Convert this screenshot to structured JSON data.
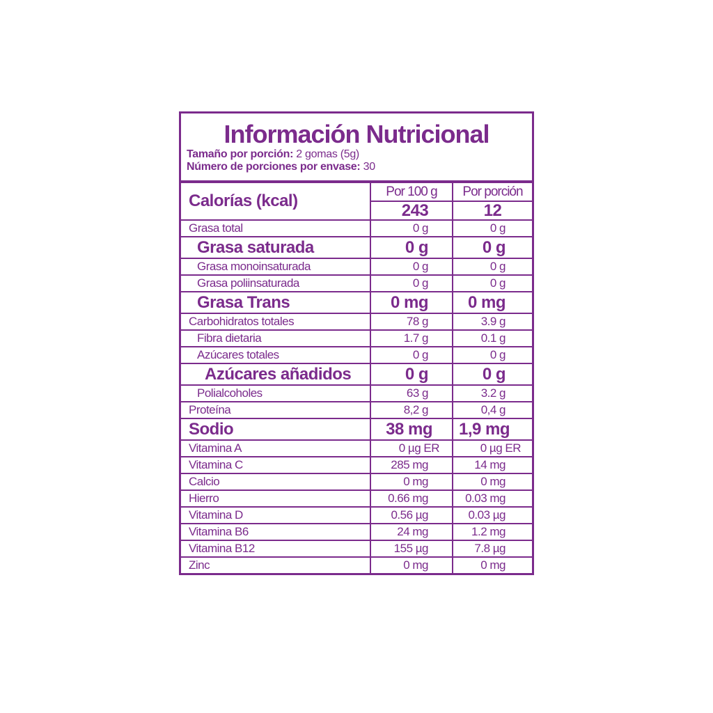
{
  "header": {
    "title": "Información Nutricional",
    "serving_size_label": "Tamaño por porción:",
    "serving_size_value": "2 gomas (5g)",
    "servings_label": "Número de porciones por envase:",
    "servings_value": "30"
  },
  "table": {
    "columns": [
      "Por 100 g",
      "Por porción"
    ],
    "rows": [
      [
        "Calorías (kcal)",
        "243",
        "12"
      ],
      [
        "Grasa total",
        "0 g",
        "0 g"
      ],
      [
        "Grasa saturada",
        "0 g",
        "0 g"
      ],
      [
        "Grasa monoinsaturada",
        "0 g",
        "0 g"
      ],
      [
        "Grasa poliinsaturada",
        "0 g",
        "0 g"
      ],
      [
        "Grasa Trans",
        "0 mg",
        "0 mg"
      ],
      [
        "Carbohidratos totales",
        "78 g",
        "3.9 g"
      ],
      [
        "Fibra dietaria",
        "1.7 g",
        "0.1 g"
      ],
      [
        "Azúcares totales",
        "0 g",
        "0 g"
      ],
      [
        "Azúcares añadidos",
        "0 g",
        "0 g"
      ],
      [
        "Polialcoholes",
        "63 g",
        "3.2 g"
      ],
      [
        "Proteína",
        "8,2 g",
        "0,4 g"
      ],
      [
        "Sodio",
        "38 mg",
        "1,9 mg"
      ],
      [
        "Vitamina A",
        "0 µg ER",
        "0 µg ER"
      ],
      [
        "Vitamina C",
        "285 mg",
        "14 mg"
      ],
      [
        "Calcio",
        "0 mg",
        "0 mg"
      ],
      [
        "Hierro",
        "0.66 mg",
        "0.03 mg"
      ],
      [
        "Vitamina D",
        "0.56 µg",
        "0.03 µg"
      ],
      [
        "Vitamina B6",
        "24 mg",
        "1.2 mg"
      ],
      [
        "Vitamina B12",
        "155 µg",
        "7.8 µg"
      ],
      [
        "Zinc",
        "0 mg",
        "0 mg"
      ]
    ]
  }
}
